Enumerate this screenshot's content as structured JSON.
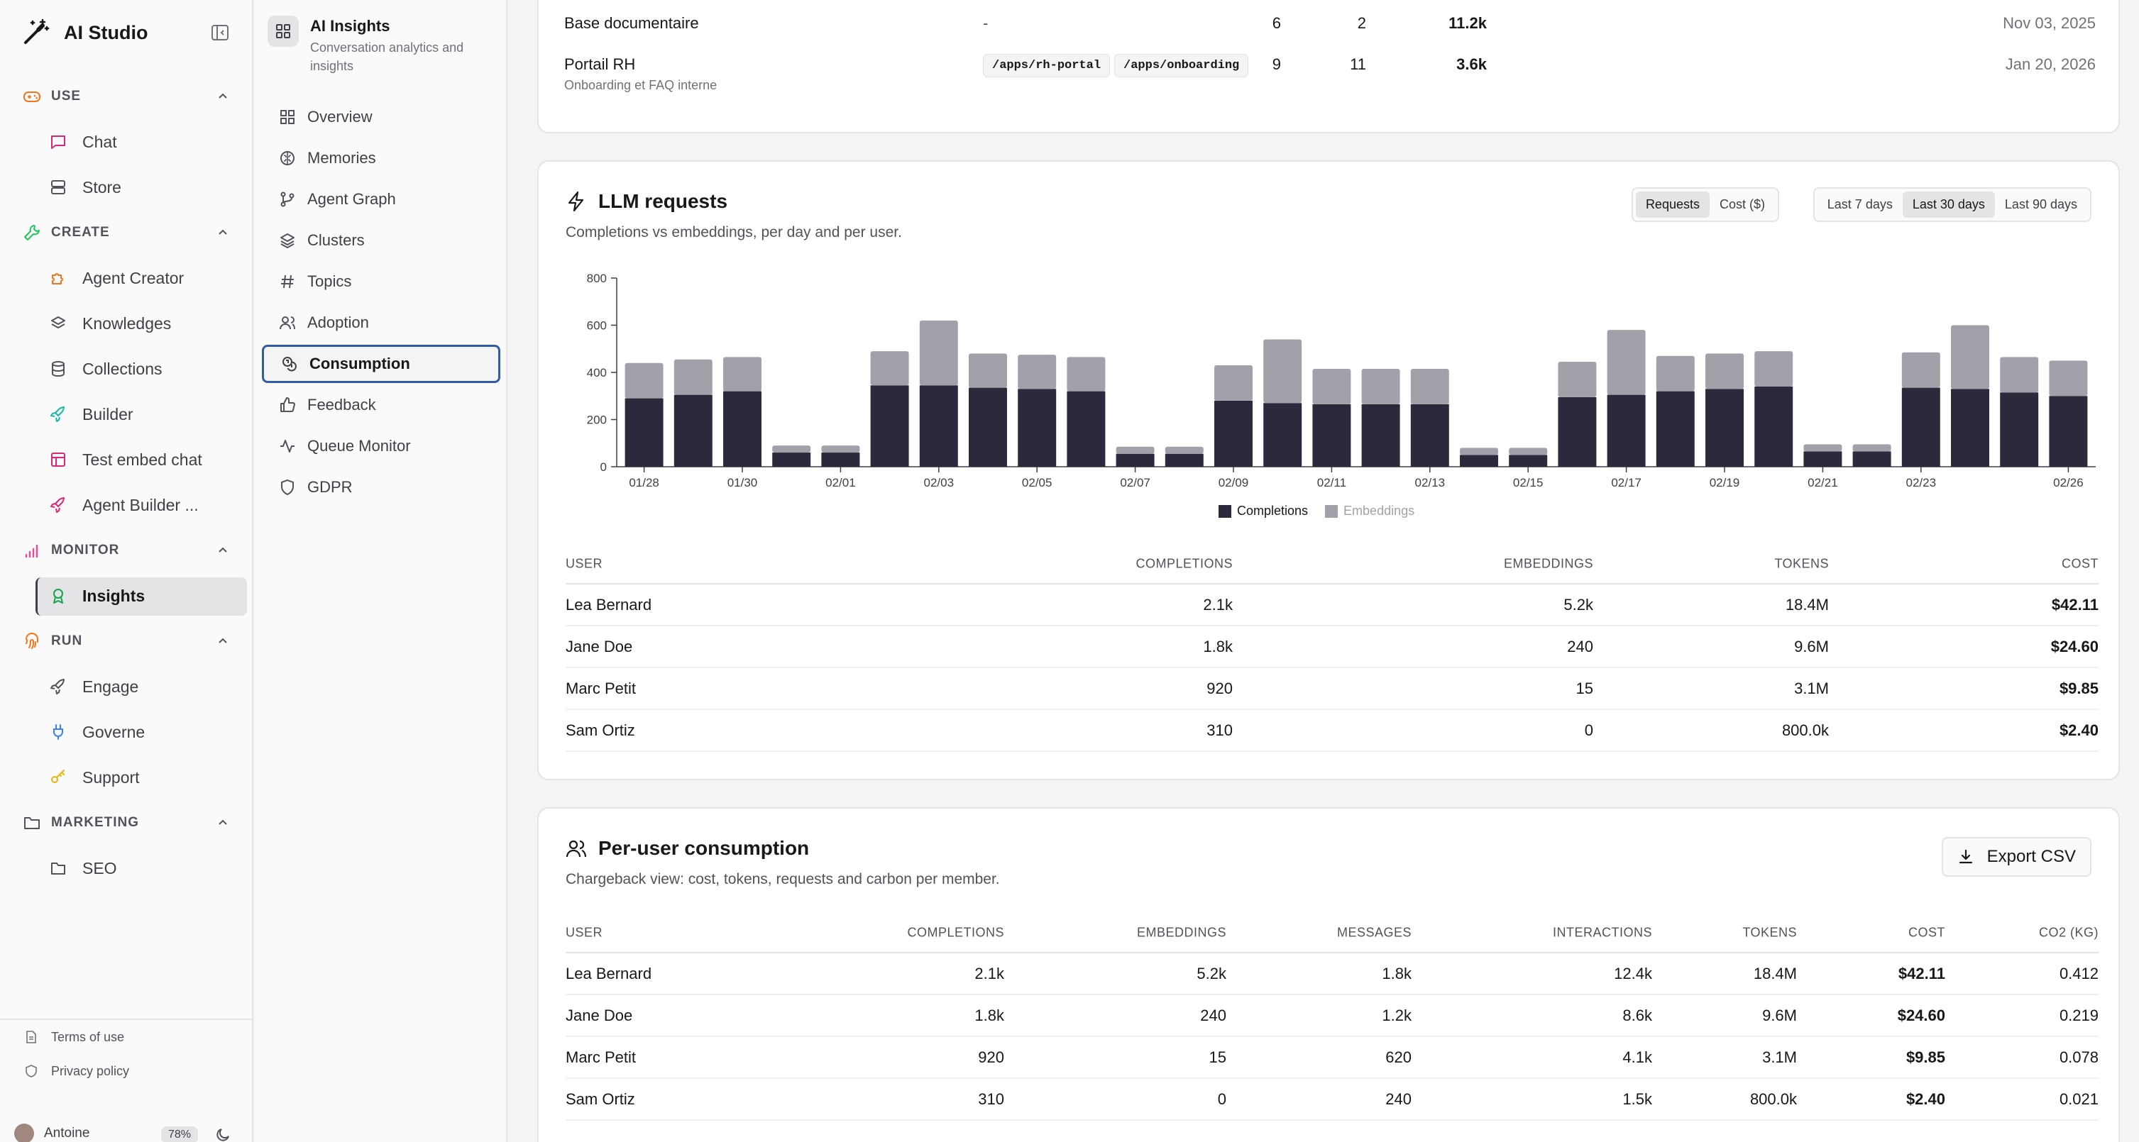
{
  "app": {
    "title": "AI Studio"
  },
  "sidebar": {
    "sections": [
      {
        "label": "USE",
        "items": [
          "Chat",
          "Store"
        ]
      },
      {
        "label": "CREATE",
        "items": [
          "Agent Creator",
          "Knowledges",
          "Collections",
          "Builder",
          "Test embed chat",
          "Agent Builder ..."
        ]
      },
      {
        "label": "MONITOR",
        "items": [
          "Insights"
        ]
      },
      {
        "label": "RUN",
        "items": [
          "Engage",
          "Governe",
          "Support"
        ]
      },
      {
        "label": "MARKETING",
        "items": [
          "SEO"
        ]
      }
    ],
    "footer": {
      "terms": "Terms of use",
      "privacy": "Privacy policy"
    },
    "user": {
      "name": "Antoine",
      "usage": "78%"
    }
  },
  "subnav": {
    "title": "AI Insights",
    "description": "Conversation analytics and insights",
    "items": [
      "Overview",
      "Memories",
      "Agent Graph",
      "Clusters",
      "Topics",
      "Adoption",
      "Consumption",
      "Feedback",
      "Queue Monitor",
      "GDPR"
    ]
  },
  "kb_rows": [
    {
      "name": "Base documentaire",
      "sub": "",
      "paths": [],
      "dash": "-",
      "a": "6",
      "b": "2",
      "size": "11.2k",
      "date": "Nov 03, 2025"
    },
    {
      "name": "Portail RH",
      "sub": "Onboarding et FAQ interne",
      "paths": [
        "/apps/rh-portal",
        "/apps/onboarding"
      ],
      "dash": "",
      "a": "9",
      "b": "11",
      "size": "3.6k",
      "date": "Jan 20, 2026"
    }
  ],
  "llm": {
    "title": "LLM requests",
    "subtitle": "Completions vs embeddings, per day and per user.",
    "toggle": [
      "Requests",
      "Cost ($)"
    ],
    "range": [
      "Last 7 days",
      "Last 30 days",
      "Last 90 days"
    ],
    "headers": [
      "USER",
      "COMPLETIONS",
      "EMBEDDINGS",
      "TOKENS",
      "COST"
    ],
    "rows": [
      [
        "Lea Bernard",
        "2.1k",
        "5.2k",
        "18.4M",
        "$42.11"
      ],
      [
        "Jane Doe",
        "1.8k",
        "240",
        "9.6M",
        "$24.60"
      ],
      [
        "Marc Petit",
        "920",
        "15",
        "3.1M",
        "$9.85"
      ],
      [
        "Sam Ortiz",
        "310",
        "0",
        "800.0k",
        "$2.40"
      ]
    ]
  },
  "chart_data": {
    "type": "bar",
    "stacked": true,
    "categories": [
      "01/28",
      "01/29",
      "01/30",
      "01/31",
      "02/01",
      "02/02",
      "02/03",
      "02/04",
      "02/05",
      "02/06",
      "02/07",
      "02/08",
      "02/09",
      "02/10",
      "02/11",
      "02/12",
      "02/13",
      "02/14",
      "02/15",
      "02/16",
      "02/17",
      "02/18",
      "02/19",
      "02/20",
      "02/21",
      "02/22",
      "02/23",
      "02/24",
      "02/25",
      "02/26"
    ],
    "tick_labels": [
      "01/28",
      "01/30",
      "02/01",
      "02/03",
      "02/05",
      "02/07",
      "02/09",
      "02/11",
      "02/13",
      "02/15",
      "02/17",
      "02/19",
      "02/21",
      "02/23",
      "02/26"
    ],
    "series": [
      {
        "name": "Completions",
        "color": "#2b2a3d",
        "values": [
          290,
          305,
          320,
          60,
          60,
          345,
          345,
          335,
          330,
          320,
          55,
          55,
          280,
          270,
          265,
          265,
          265,
          50,
          50,
          295,
          305,
          320,
          330,
          340,
          65,
          65,
          335,
          330,
          315,
          300
        ]
      },
      {
        "name": "Embeddings",
        "color": "#a1a1aa",
        "values": [
          150,
          150,
          145,
          30,
          30,
          145,
          275,
          145,
          145,
          145,
          30,
          30,
          150,
          270,
          150,
          150,
          150,
          30,
          30,
          150,
          275,
          150,
          150,
          150,
          30,
          30,
          150,
          270,
          150,
          150
        ]
      }
    ],
    "ylim": [
      0,
      800
    ],
    "yticks": [
      0,
      200,
      400,
      600,
      800
    ],
    "grid": false,
    "legend": "bottom"
  },
  "per_user": {
    "title": "Per-user consumption",
    "subtitle": "Chargeback view: cost, tokens, requests and carbon per member.",
    "export": "Export CSV",
    "headers": [
      "USER",
      "COMPLETIONS",
      "EMBEDDINGS",
      "MESSAGES",
      "INTERACTIONS",
      "TOKENS",
      "COST",
      "CO2 (KG)"
    ],
    "rows": [
      [
        "Lea Bernard",
        "2.1k",
        "5.2k",
        "1.8k",
        "12.4k",
        "18.4M",
        "$42.11",
        "0.412"
      ],
      [
        "Jane Doe",
        "1.8k",
        "240",
        "1.2k",
        "8.6k",
        "9.6M",
        "$24.60",
        "0.219"
      ],
      [
        "Marc Petit",
        "920",
        "15",
        "620",
        "4.1k",
        "3.1M",
        "$9.85",
        "0.078"
      ],
      [
        "Sam Ortiz",
        "310",
        "0",
        "240",
        "1.5k",
        "800.0k",
        "$2.40",
        "0.021"
      ]
    ]
  }
}
